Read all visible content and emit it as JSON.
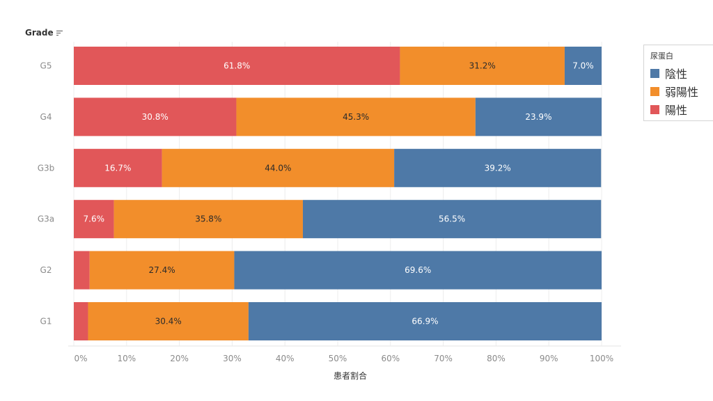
{
  "header": {
    "rows_label": "Grade"
  },
  "legend": {
    "title": "尿蛋白",
    "items": [
      {
        "label": "陰性",
        "color": "#4e79a7"
      },
      {
        "label": "弱陽性",
        "color": "#f28e2b"
      },
      {
        "label": "陽性",
        "color": "#e15759"
      }
    ]
  },
  "chart_data": {
    "type": "bar",
    "orientation": "horizontal",
    "stacked": true,
    "categories": [
      "G5",
      "G4",
      "G3b",
      "G3a",
      "G2",
      "G1"
    ],
    "series": [
      {
        "name": "陽性",
        "color": "#e15759",
        "values": [
          61.8,
          30.8,
          16.7,
          7.6,
          3.0,
          2.7
        ],
        "labels": [
          "61.8%",
          "30.8%",
          "16.7%",
          "7.6%",
          "",
          ""
        ]
      },
      {
        "name": "弱陽性",
        "color": "#f28e2b",
        "values": [
          31.2,
          45.3,
          44.0,
          35.8,
          27.4,
          30.4
        ],
        "labels": [
          "31.2%",
          "45.3%",
          "44.0%",
          "35.8%",
          "27.4%",
          "30.4%"
        ]
      },
      {
        "name": "陰性",
        "color": "#4e79a7",
        "values": [
          7.0,
          23.9,
          39.2,
          56.5,
          69.6,
          66.9
        ],
        "labels": [
          "7.0%",
          "23.9%",
          "39.2%",
          "56.5%",
          "69.6%",
          "66.9%"
        ]
      }
    ],
    "xlabel": "患者割合",
    "xlim": [
      0,
      100
    ],
    "xticks": [
      "0%",
      "10%",
      "20%",
      "30%",
      "40%",
      "50%",
      "60%",
      "70%",
      "80%",
      "90%",
      "100%"
    ],
    "grid": true
  }
}
